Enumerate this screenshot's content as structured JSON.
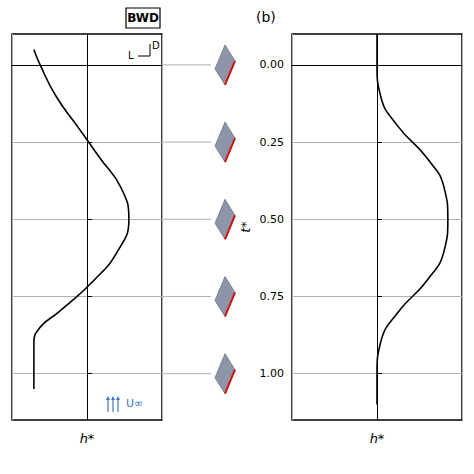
{
  "chart_data": [
    {
      "type": "line",
      "title": "BWD",
      "xlabel": "h*",
      "annotations": {
        "drag": "D",
        "lift": "L",
        "flow": "U∞"
      },
      "x": [
        -0.85,
        -0.75,
        -0.5,
        -0.15,
        0.2,
        0.55,
        0.67,
        0.5,
        0.1,
        -0.45,
        -0.75,
        -0.85,
        -0.85,
        -0.85
      ],
      "y": [
        -0.05,
        0.0,
        0.1,
        0.2,
        0.3,
        0.4,
        0.5,
        0.6,
        0.7,
        0.8,
        0.85,
        0.9,
        1.0,
        1.05
      ],
      "color": "#000000",
      "line_style": "solid",
      "xlim": [
        -1.2,
        1.2
      ],
      "xticks": [
        -1.2,
        0,
        1.2
      ],
      "ylim": [
        -0.1,
        1.15
      ],
      "yticks": [
        {
          "value": 0,
          "label": "0.00"
        },
        {
          "value": 0.25,
          "label": "0.25"
        },
        {
          "value": 0.5,
          "label": "0.50"
        },
        {
          "value": 0.75,
          "label": "0.75"
        },
        {
          "value": 1,
          "label": "1.00"
        }
      ],
      "grid": true,
      "tick_labels": false
    },
    {
      "type": "line",
      "title": "(b)",
      "xlabel": "h*",
      "ylabel": "t*",
      "x": [
        0,
        0,
        0.05,
        0.3,
        0.7,
        0.95,
        1.0,
        0.95,
        0.7,
        0.3,
        0.05,
        0,
        0
      ],
      "y": [
        -0.1,
        0.0,
        0.1,
        0.2,
        0.3,
        0.4,
        0.5,
        0.6,
        0.7,
        0.8,
        0.9,
        1.0,
        1.1
      ],
      "color": "#000000",
      "line_style": "solid",
      "xlim": [
        -1.2,
        1.2
      ],
      "xticks": [
        -1.2,
        0,
        1.2
      ],
      "ylim": [
        -0.1,
        1.15
      ],
      "yticks": [
        {
          "value": 0,
          "label": "0.00"
        },
        {
          "value": 0.25,
          "label": "0.25"
        },
        {
          "value": 0.5,
          "label": "0.50"
        },
        {
          "value": 0.75,
          "label": "0.75"
        },
        {
          "value": 1,
          "label": "1.00"
        }
      ],
      "grid": true,
      "tick_labels": "y"
    }
  ]
}
